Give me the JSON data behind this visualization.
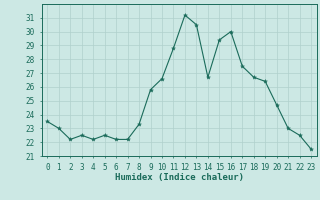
{
  "x": [
    0,
    1,
    2,
    3,
    4,
    5,
    6,
    7,
    8,
    9,
    10,
    11,
    12,
    13,
    14,
    15,
    16,
    17,
    18,
    19,
    20,
    21,
    22,
    23
  ],
  "y": [
    23.5,
    23.0,
    22.2,
    22.5,
    22.2,
    22.5,
    22.2,
    22.2,
    23.3,
    25.8,
    26.6,
    28.8,
    31.2,
    30.5,
    26.7,
    29.4,
    30.0,
    27.5,
    26.7,
    26.4,
    24.7,
    23.0,
    22.5,
    21.5
  ],
  "line_color": "#1a6b5a",
  "marker": "*",
  "marker_size": 3,
  "bg_color": "#cce8e4",
  "grid_color": "#b0d0cc",
  "xlabel": "Humidex (Indice chaleur)",
  "ylim": [
    21,
    32
  ],
  "xlim": [
    -0.5,
    23.5
  ],
  "yticks": [
    21,
    22,
    23,
    24,
    25,
    26,
    27,
    28,
    29,
    30,
    31
  ],
  "xticks": [
    0,
    1,
    2,
    3,
    4,
    5,
    6,
    7,
    8,
    9,
    10,
    11,
    12,
    13,
    14,
    15,
    16,
    17,
    18,
    19,
    20,
    21,
    22,
    23
  ],
  "tick_fontsize": 5.5,
  "label_fontsize": 6.5
}
